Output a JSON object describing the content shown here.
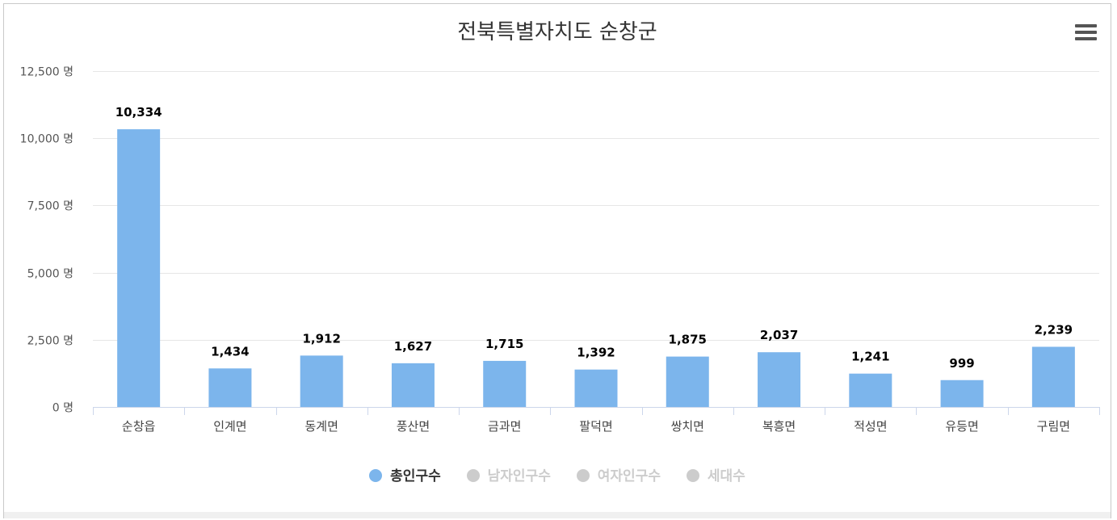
{
  "chart": {
    "title": "전북특별자치도 순창군",
    "menu_icon": "hamburger-menu-icon"
  },
  "chart_data": {
    "type": "bar",
    "title": "전북특별자치도 순창군",
    "xlabel": "",
    "ylabel": "",
    "ylim": [
      0,
      12500
    ],
    "y_ticks": [
      0,
      2500,
      5000,
      7500,
      10000,
      12500
    ],
    "y_tick_labels": [
      "0 명",
      "2,500 명",
      "5,000 명",
      "7,500 명",
      "10,000 명",
      "12,500 명"
    ],
    "grid": true,
    "categories": [
      "순창읍",
      "인계면",
      "동계면",
      "풍산면",
      "금과면",
      "팔덕면",
      "쌍치면",
      "복흥면",
      "적성면",
      "유등면",
      "구림면"
    ],
    "series": [
      {
        "name": "총인구수",
        "color": "#7cb5ec",
        "visible": true,
        "values": [
          10334,
          1434,
          1912,
          1627,
          1715,
          1392,
          1875,
          2037,
          1241,
          999,
          2239
        ],
        "data_labels": [
          "10,334",
          "1,434",
          "1,912",
          "1,627",
          "1,715",
          "1,392",
          "1,875",
          "2,037",
          "1,241",
          "999",
          "2,239"
        ]
      }
    ],
    "legend_position": "bottom-center"
  },
  "legend": [
    {
      "label": "총인구수",
      "active": true,
      "color": "#7cb5ec"
    },
    {
      "label": "남자인구수",
      "active": false,
      "color": "#cccccc"
    },
    {
      "label": "여자인구수",
      "active": false,
      "color": "#cccccc"
    },
    {
      "label": "세대수",
      "active": false,
      "color": "#cccccc"
    }
  ],
  "colors": {
    "bar": "#7cb5ec",
    "grid": "#e6e6e6",
    "axis": "#ccd6eb",
    "inactive": "#cccccc"
  }
}
